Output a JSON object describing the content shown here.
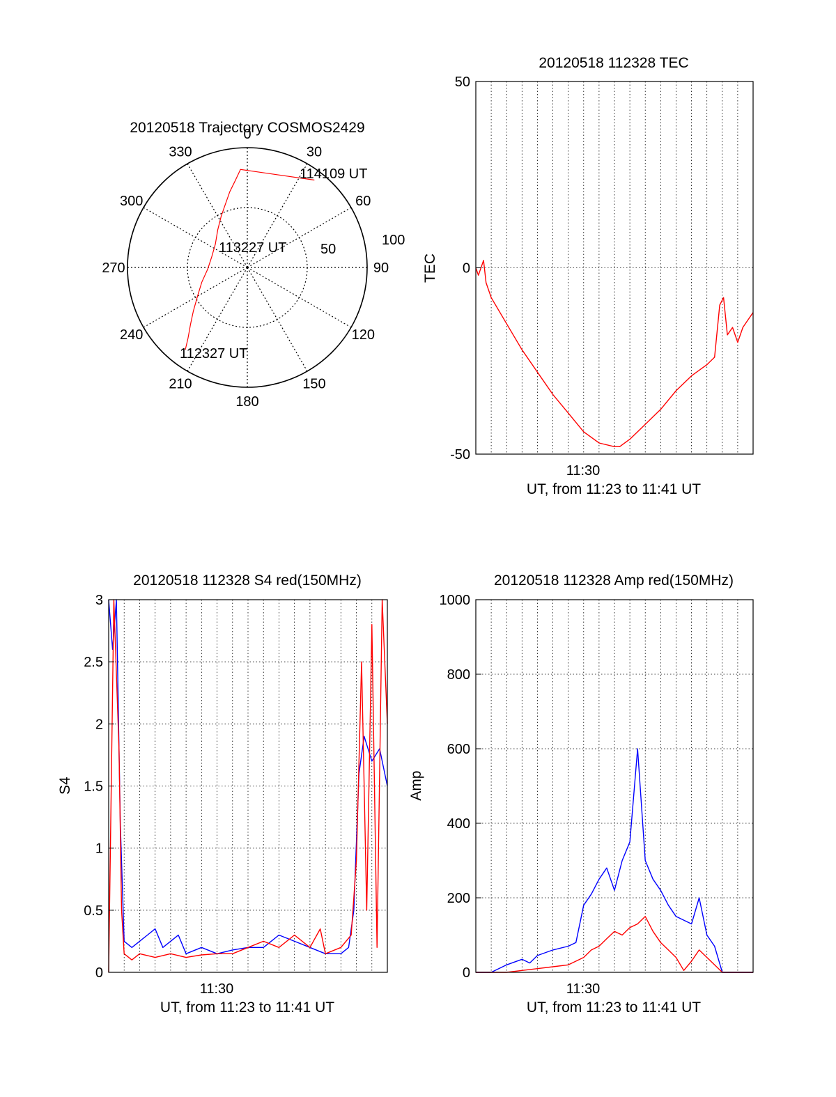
{
  "colors": {
    "red": "#ff0000",
    "blue": "#0000ff",
    "axis": "#000000",
    "grid": "#000000"
  },
  "chart_data": [
    {
      "id": "trajectory",
      "type": "polar",
      "title": "20120518 Trajectory COSMOS2429",
      "r_max": 100,
      "r_rings": [
        50,
        100
      ],
      "radial_tick_labels": [
        "50",
        "100"
      ],
      "angle_labels": [
        "0",
        "30",
        "60",
        "90",
        "120",
        "150",
        "180",
        "210",
        "240",
        "270",
        "300",
        "330"
      ],
      "angles_deg": [
        0,
        30,
        60,
        90,
        120,
        150,
        180,
        210,
        240,
        270,
        300,
        330
      ],
      "grid": true,
      "series": [
        {
          "color": "#ff0000",
          "points": [
            {
              "az": 217,
              "r": 86
            },
            {
              "az": 220,
              "r": 77
            },
            {
              "az": 225,
              "r": 67
            },
            {
              "az": 231,
              "r": 58
            },
            {
              "az": 240,
              "r": 48
            },
            {
              "az": 252,
              "r": 40
            },
            {
              "az": 268,
              "r": 33
            },
            {
              "az": 287,
              "r": 31
            },
            {
              "az": 306,
              "r": 33
            },
            {
              "az": 322,
              "r": 40
            },
            {
              "az": 333,
              "r": 48
            },
            {
              "az": 341,
              "r": 56
            },
            {
              "az": 347,
              "r": 65
            },
            {
              "az": 352,
              "r": 73
            },
            {
              "az": 356,
              "r": 82
            },
            {
              "az": 37.5,
              "r": 92
            }
          ]
        }
      ],
      "annotations": [
        {
          "text": "114109 UT",
          "az": 33,
          "r": 88
        },
        {
          "text": "113227 UT",
          "az": 315,
          "r": 12
        },
        {
          "text": "112327 UT",
          "az": 208,
          "r": 72
        }
      ]
    },
    {
      "id": "tec",
      "type": "line",
      "title": "20120518 112328 TEC",
      "xlabel": "UT, from 11:23 to 11:41 UT",
      "ylabel": "TEC",
      "xlim": [
        "11:23",
        "11:41"
      ],
      "ylim": [
        -50,
        50
      ],
      "yticks": [
        -50,
        0,
        50
      ],
      "xtick_label": "11:30",
      "grid": true,
      "series": [
        {
          "color": "#ff0000",
          "x": [
            "11:23:00",
            "11:23:10",
            "11:23:20",
            "11:23:30",
            "11:23:40",
            "11:24:00",
            "11:25:00",
            "11:26:00",
            "11:27:00",
            "11:28:00",
            "11:29:00",
            "11:30:00",
            "11:31:00",
            "11:32:00",
            "11:32:20",
            "11:33:00",
            "11:34:00",
            "11:35:00",
            "11:36:00",
            "11:37:00",
            "11:38:00",
            "11:38:30",
            "11:38:50",
            "11:39:05",
            "11:39:20",
            "11:39:40",
            "11:40:00",
            "11:40:20",
            "11:40:40",
            "11:41:00"
          ],
          "y": [
            0,
            -2,
            0,
            2,
            -4,
            -8,
            -15,
            -22,
            -28,
            -34,
            -39,
            -44,
            -47,
            -48,
            -48,
            -46,
            -42,
            -38,
            -33,
            -29,
            -26,
            -24,
            -10,
            -8,
            -18,
            -16,
            -20,
            -16,
            -14,
            -12
          ]
        }
      ]
    },
    {
      "id": "s4",
      "type": "line",
      "title": "20120518 112328 S4 red(150MHz)",
      "xlabel": "UT, from 11:23 to 11:41 UT",
      "ylabel": "S4",
      "xlim": [
        "11:23",
        "11:41"
      ],
      "ylim": [
        0,
        3
      ],
      "yticks": [
        0,
        0.5,
        1,
        1.5,
        2,
        2.5,
        3
      ],
      "ytick_labels": [
        "0",
        "0.5",
        "1",
        "1.5",
        "2",
        "2.5",
        "3"
      ],
      "xtick_label": "11:30",
      "grid": true,
      "series": [
        {
          "color": "#0000ff",
          "x": [
            "11:23:00",
            "11:23:15",
            "11:23:30",
            "11:23:45",
            "11:24:00",
            "11:24:30",
            "11:25:00",
            "11:25:30",
            "11:26:00",
            "11:26:30",
            "11:27:00",
            "11:27:30",
            "11:28:00",
            "11:29:00",
            "11:30:00",
            "11:31:00",
            "11:32:00",
            "11:33:00",
            "11:34:00",
            "11:35:00",
            "11:36:00",
            "11:37:00",
            "11:38:00",
            "11:38:30",
            "11:38:50",
            "11:39:10",
            "11:39:30",
            "11:40:00",
            "11:40:30",
            "11:41:00"
          ],
          "y": [
            3.0,
            2.6,
            3.0,
            1.2,
            0.25,
            0.2,
            0.25,
            0.3,
            0.35,
            0.2,
            0.25,
            0.3,
            0.15,
            0.2,
            0.15,
            0.18,
            0.2,
            0.2,
            0.3,
            0.25,
            0.2,
            0.15,
            0.15,
            0.2,
            0.5,
            1.6,
            1.9,
            1.7,
            1.8,
            1.5
          ]
        },
        {
          "color": "#ff0000",
          "x": [
            "11:23:00",
            "11:23:20",
            "11:23:40",
            "11:23:50",
            "11:24:00",
            "11:24:30",
            "11:25:00",
            "11:26:00",
            "11:27:00",
            "11:28:00",
            "11:29:00",
            "11:30:00",
            "11:31:00",
            "11:32:00",
            "11:33:00",
            "11:34:00",
            "11:35:00",
            "11:36:00",
            "11:36:40",
            "11:37:00",
            "11:38:00",
            "11:38:40",
            "11:39:00",
            "11:39:20",
            "11:39:40",
            "11:40:00",
            "11:40:20",
            "11:40:40",
            "11:41:00"
          ],
          "y": [
            0.0,
            3.0,
            1.8,
            0.5,
            0.15,
            0.1,
            0.15,
            0.12,
            0.15,
            0.12,
            0.14,
            0.15,
            0.15,
            0.2,
            0.25,
            0.2,
            0.3,
            0.2,
            0.35,
            0.15,
            0.2,
            0.3,
            0.9,
            2.5,
            0.5,
            2.8,
            0.2,
            3.0,
            2.0
          ]
        }
      ]
    },
    {
      "id": "amp",
      "type": "line",
      "title": "20120518 112328 Amp red(150MHz)",
      "xlabel": "UT, from 11:23 to 11:41 UT",
      "ylabel": "Amp",
      "xlim": [
        "11:23",
        "11:41"
      ],
      "ylim": [
        0,
        1000
      ],
      "yticks": [
        0,
        200,
        400,
        600,
        800,
        1000
      ],
      "xtick_label": "11:30",
      "grid": true,
      "series": [
        {
          "color": "#0000ff",
          "x": [
            "11:23:00",
            "11:24:00",
            "11:25:00",
            "11:26:00",
            "11:26:30",
            "11:27:00",
            "11:28:00",
            "11:29:00",
            "11:29:30",
            "11:30:00",
            "11:30:30",
            "11:31:00",
            "11:31:30",
            "11:32:00",
            "11:32:30",
            "11:33:00",
            "11:33:30",
            "11:34:00",
            "11:34:30",
            "11:35:00",
            "11:35:30",
            "11:36:00",
            "11:36:30",
            "11:37:00",
            "11:37:30",
            "11:38:00",
            "11:38:30",
            "11:39:00",
            "11:40:00",
            "11:41:00"
          ],
          "y": [
            0,
            0,
            20,
            35,
            25,
            45,
            60,
            70,
            80,
            180,
            210,
            250,
            280,
            220,
            300,
            350,
            600,
            300,
            250,
            220,
            180,
            150,
            140,
            130,
            200,
            100,
            70,
            0,
            0,
            0
          ]
        },
        {
          "color": "#ff0000",
          "x": [
            "11:23:00",
            "11:25:00",
            "11:26:00",
            "11:27:00",
            "11:28:00",
            "11:29:00",
            "11:30:00",
            "11:30:30",
            "11:31:00",
            "11:31:30",
            "11:32:00",
            "11:32:30",
            "11:33:00",
            "11:33:30",
            "11:34:00",
            "11:34:30",
            "11:35:00",
            "11:35:30",
            "11:36:00",
            "11:36:30",
            "11:37:00",
            "11:37:30",
            "11:38:00",
            "11:38:30",
            "11:39:00",
            "11:41:00"
          ],
          "y": [
            0,
            0,
            5,
            10,
            15,
            20,
            40,
            60,
            70,
            90,
            110,
            100,
            120,
            130,
            150,
            110,
            80,
            60,
            40,
            5,
            30,
            60,
            40,
            20,
            0,
            0
          ]
        }
      ]
    }
  ]
}
